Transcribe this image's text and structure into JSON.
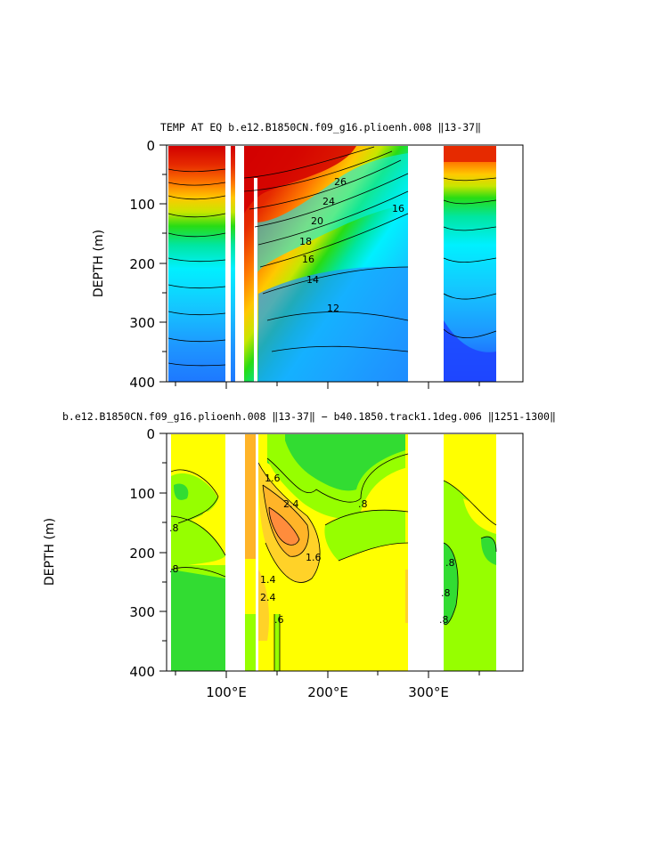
{
  "chart_data": [
    {
      "type": "heatmap",
      "title": "TEMP AT EQ b.e12.B1850CN.f09_g16.plioenh.008 ‖13-37‖",
      "ylabel": "DEPTH (m)",
      "xlabel": "",
      "ylim": [
        0,
        400
      ],
      "yticks": [
        "0",
        "100",
        "200",
        "300",
        "400"
      ],
      "xlim": [
        35,
        385
      ],
      "xticks": [],
      "contour_labels": [
        {
          "text": "26",
          "x": 230,
          "y": 70
        },
        {
          "text": "24",
          "x": 217,
          "y": 95
        },
        {
          "text": "20",
          "x": 198,
          "y": 130
        },
        {
          "text": "18",
          "x": 185,
          "y": 165
        },
        {
          "text": "16",
          "x": 188,
          "y": 193
        },
        {
          "text": "14",
          "x": 196,
          "y": 225
        },
        {
          "text": "12",
          "x": 240,
          "y": 275
        },
        {
          "text": "16",
          "x": 270,
          "y": 110
        }
      ],
      "land_gaps_lon": [
        [
          99,
          103
        ],
        [
          107,
          118
        ],
        [
          125,
          126
        ],
        [
          129,
          132
        ],
        [
          280,
          317
        ]
      ],
      "data_lon_range": [
        44,
        368
      ],
      "temperature_at_surface_approx": 29,
      "temperature_at_400m_approx": 8
    },
    {
      "type": "heatmap",
      "title": "b.e12.B1850CN.f09_g16.plioenh.008 ‖13-37‖ − b40.1850.track1.1deg.006 ‖1251-1300‖",
      "ylabel": "DEPTH (m)",
      "xlabel": "",
      "ylim": [
        0,
        400
      ],
      "yticks": [
        "0",
        "100",
        "200",
        "300",
        "400"
      ],
      "xlim": [
        35,
        385
      ],
      "xticks": [
        "100°E",
        "200°E",
        "300°E"
      ],
      "contour_labels": [
        {
          "text": "1.6",
          "x": 150,
          "y": 85
        },
        {
          "text": "2.4",
          "x": 160,
          "y": 120
        },
        {
          "text": "1.6",
          "x": 190,
          "y": 200
        },
        {
          "text": "1.4",
          "x": 145,
          "y": 230
        },
        {
          "text": "2.4",
          "x": 140,
          "y": 255
        },
        {
          "text": ".6",
          "x": 150,
          "y": 290
        },
        {
          "text": ".8",
          "x": 230,
          "y": 100
        },
        {
          "text": ".8",
          "x": 43,
          "y": 160
        },
        {
          "text": ".8",
          "x": 43,
          "y": 230
        },
        {
          "text": ".8",
          "x": 320,
          "y": 220
        },
        {
          "text": ".8",
          "x": 318,
          "y": 270
        },
        {
          "text": ".8",
          "x": 316,
          "y": 315
        }
      ],
      "land_gaps_lon": [
        [
          99,
          118
        ],
        [
          125,
          126
        ],
        [
          129,
          132
        ],
        [
          280,
          317
        ]
      ],
      "data_lon_range": [
        44,
        368
      ]
    }
  ]
}
